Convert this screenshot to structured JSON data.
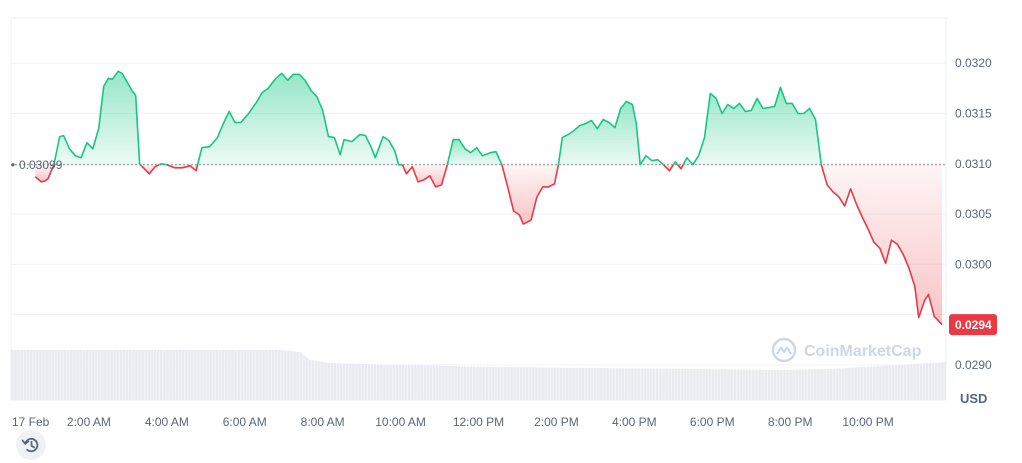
{
  "chart_data": {
    "type": "line",
    "currency": "USD",
    "reference_label": "0.03099",
    "reference_value": 0.03099,
    "last_value": 0.0294,
    "last_label": "0.0294",
    "ylim": [
      0.02865,
      0.03245
    ],
    "y_ticks": [
      {
        "value": 0.032,
        "label": "0.0320"
      },
      {
        "value": 0.0315,
        "label": "0.0315"
      },
      {
        "value": 0.031,
        "label": "0.0310"
      },
      {
        "value": 0.0305,
        "label": "0.0305"
      },
      {
        "value": 0.03,
        "label": "0.0300"
      },
      {
        "value": 0.029,
        "label": "0.0290"
      }
    ],
    "x_ticks": [
      {
        "t": 0.5,
        "label": "17 Feb"
      },
      {
        "t": 2,
        "label": "2:00 AM"
      },
      {
        "t": 4,
        "label": "4:00 AM"
      },
      {
        "t": 6,
        "label": "6:00 AM"
      },
      {
        "t": 8,
        "label": "8:00 AM"
      },
      {
        "t": 10,
        "label": "10:00 AM"
      },
      {
        "t": 12,
        "label": "12:00 PM"
      },
      {
        "t": 14,
        "label": "2:00 PM"
      },
      {
        "t": 16,
        "label": "4:00 PM"
      },
      {
        "t": 18,
        "label": "6:00 PM"
      },
      {
        "t": 20,
        "label": "8:00 PM"
      },
      {
        "t": 22,
        "label": "10:00 PM"
      }
    ],
    "x_range": [
      0,
      24
    ],
    "series": [
      {
        "points": [
          [
            0.62,
            0.03087
          ],
          [
            0.78,
            0.03082
          ],
          [
            0.88,
            0.03083
          ],
          [
            0.95,
            0.03085
          ],
          [
            1.1,
            0.03099
          ],
          [
            1.25,
            0.03127
          ],
          [
            1.35,
            0.03128
          ],
          [
            1.5,
            0.03115
          ],
          [
            1.65,
            0.03108
          ],
          [
            1.8,
            0.03106
          ],
          [
            1.95,
            0.03121
          ],
          [
            2.1,
            0.03115
          ],
          [
            2.25,
            0.03135
          ],
          [
            2.38,
            0.03177
          ],
          [
            2.5,
            0.03185
          ],
          [
            2.6,
            0.03184
          ],
          [
            2.75,
            0.03192
          ],
          [
            2.85,
            0.0319
          ],
          [
            3.0,
            0.0318
          ],
          [
            3.1,
            0.03173
          ],
          [
            3.2,
            0.03168
          ],
          [
            3.3,
            0.031
          ],
          [
            3.45,
            0.03094
          ],
          [
            3.55,
            0.0309
          ],
          [
            3.7,
            0.03097
          ],
          [
            3.85,
            0.031
          ],
          [
            4.0,
            0.03099
          ],
          [
            4.2,
            0.03096
          ],
          [
            4.4,
            0.03096
          ],
          [
            4.6,
            0.03098
          ],
          [
            4.75,
            0.03093
          ],
          [
            4.9,
            0.03116
          ],
          [
            5.1,
            0.03117
          ],
          [
            5.3,
            0.03126
          ],
          [
            5.45,
            0.0314
          ],
          [
            5.6,
            0.03152
          ],
          [
            5.75,
            0.03141
          ],
          [
            5.9,
            0.03141
          ],
          [
            6.1,
            0.0315
          ],
          [
            6.3,
            0.03161
          ],
          [
            6.45,
            0.03171
          ],
          [
            6.6,
            0.03175
          ],
          [
            6.8,
            0.03185
          ],
          [
            6.95,
            0.0319
          ],
          [
            7.1,
            0.03183
          ],
          [
            7.25,
            0.03189
          ],
          [
            7.4,
            0.03189
          ],
          [
            7.55,
            0.03183
          ],
          [
            7.7,
            0.03173
          ],
          [
            7.85,
            0.03167
          ],
          [
            8.0,
            0.03153
          ],
          [
            8.15,
            0.03127
          ],
          [
            8.3,
            0.03126
          ],
          [
            8.45,
            0.03109
          ],
          [
            8.55,
            0.03124
          ],
          [
            8.75,
            0.03122
          ],
          [
            8.95,
            0.03129
          ],
          [
            9.1,
            0.03128
          ],
          [
            9.25,
            0.03116
          ],
          [
            9.35,
            0.03106
          ],
          [
            9.55,
            0.03127
          ],
          [
            9.7,
            0.03123
          ],
          [
            9.85,
            0.03113
          ],
          [
            9.95,
            0.03099
          ],
          [
            10.05,
            0.03099
          ],
          [
            10.15,
            0.0309
          ],
          [
            10.3,
            0.03097
          ],
          [
            10.45,
            0.03082
          ],
          [
            10.6,
            0.03084
          ],
          [
            10.75,
            0.03088
          ],
          [
            10.9,
            0.03077
          ],
          [
            11.05,
            0.03079
          ],
          [
            11.2,
            0.03099
          ],
          [
            11.35,
            0.03124
          ],
          [
            11.5,
            0.03124
          ],
          [
            11.65,
            0.03115
          ],
          [
            11.8,
            0.03111
          ],
          [
            11.95,
            0.03116
          ],
          [
            12.1,
            0.03108
          ],
          [
            12.3,
            0.03111
          ],
          [
            12.45,
            0.03112
          ],
          [
            12.6,
            0.03099
          ],
          [
            12.75,
            0.03077
          ],
          [
            12.9,
            0.03053
          ],
          [
            13.05,
            0.03049
          ],
          [
            13.15,
            0.0304
          ],
          [
            13.35,
            0.03044
          ],
          [
            13.5,
            0.03067
          ],
          [
            13.65,
            0.03077
          ],
          [
            13.8,
            0.03077
          ],
          [
            13.95,
            0.0308
          ],
          [
            14.05,
            0.03099
          ],
          [
            14.15,
            0.03126
          ],
          [
            14.3,
            0.03129
          ],
          [
            14.45,
            0.03133
          ],
          [
            14.6,
            0.03138
          ],
          [
            14.75,
            0.0314
          ],
          [
            14.9,
            0.03143
          ],
          [
            15.05,
            0.03135
          ],
          [
            15.2,
            0.03144
          ],
          [
            15.35,
            0.03141
          ],
          [
            15.5,
            0.03136
          ],
          [
            15.65,
            0.03155
          ],
          [
            15.8,
            0.03162
          ],
          [
            15.95,
            0.03159
          ],
          [
            16.05,
            0.0314
          ],
          [
            16.15,
            0.03099
          ],
          [
            16.3,
            0.03108
          ],
          [
            16.45,
            0.03103
          ],
          [
            16.6,
            0.03104
          ],
          [
            16.75,
            0.03099
          ],
          [
            16.9,
            0.03093
          ],
          [
            17.05,
            0.03102
          ],
          [
            17.2,
            0.03095
          ],
          [
            17.35,
            0.03106
          ],
          [
            17.5,
            0.03099
          ],
          [
            17.65,
            0.03108
          ],
          [
            17.8,
            0.03126
          ],
          [
            17.95,
            0.0317
          ],
          [
            18.1,
            0.03165
          ],
          [
            18.25,
            0.0315
          ],
          [
            18.4,
            0.03159
          ],
          [
            18.55,
            0.03155
          ],
          [
            18.7,
            0.0316
          ],
          [
            18.85,
            0.03152
          ],
          [
            19.0,
            0.03153
          ],
          [
            19.15,
            0.03165
          ],
          [
            19.3,
            0.03155
          ],
          [
            19.45,
            0.03156
          ],
          [
            19.6,
            0.03157
          ],
          [
            19.75,
            0.03176
          ],
          [
            19.9,
            0.0316
          ],
          [
            20.05,
            0.0316
          ],
          [
            20.2,
            0.0315
          ],
          [
            20.35,
            0.0315
          ],
          [
            20.5,
            0.03155
          ],
          [
            20.65,
            0.03144
          ],
          [
            20.8,
            0.03099
          ],
          [
            20.95,
            0.03079
          ],
          [
            21.1,
            0.03072
          ],
          [
            21.25,
            0.03067
          ],
          [
            21.4,
            0.03058
          ],
          [
            21.55,
            0.03075
          ],
          [
            21.7,
            0.0306
          ],
          [
            21.85,
            0.03047
          ],
          [
            22.0,
            0.03035
          ],
          [
            22.15,
            0.03022
          ],
          [
            22.3,
            0.03016
          ],
          [
            22.45,
            0.03001
          ],
          [
            22.6,
            0.03024
          ],
          [
            22.75,
            0.0302
          ],
          [
            22.9,
            0.0301
          ],
          [
            23.05,
            0.02996
          ],
          [
            23.2,
            0.02978
          ],
          [
            23.3,
            0.02947
          ],
          [
            23.45,
            0.02964
          ],
          [
            23.55,
            0.0297
          ],
          [
            23.7,
            0.02948
          ],
          [
            23.9,
            0.0294
          ]
        ]
      }
    ],
    "colors": {
      "up": "#16c784",
      "down": "#ea3943",
      "grid": "#eff2f5",
      "reference": "#8a8a8a",
      "volume": "#e6e8ed"
    }
  },
  "watermark": {
    "text": "CoinMarketCap"
  },
  "history_button": {
    "icon": "history-icon"
  }
}
